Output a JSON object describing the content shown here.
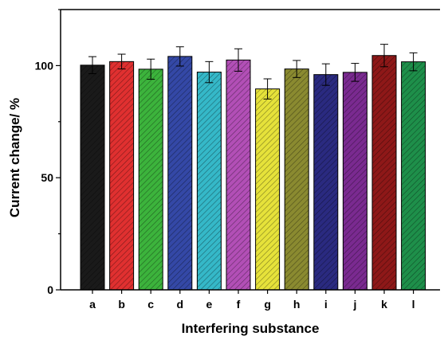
{
  "chart_data": {
    "type": "bar",
    "xlabel": "Interfering substance",
    "ylabel": "Current change/ %",
    "categories": [
      "a",
      "b",
      "c",
      "d",
      "e",
      "f",
      "g",
      "h",
      "i",
      "j",
      "k",
      "l"
    ],
    "values": [
      100.2,
      101.8,
      98.4,
      104.1,
      97.1,
      102.5,
      89.6,
      98.5,
      96.0,
      97.0,
      104.5,
      101.7
    ],
    "errors": [
      3.8,
      3.3,
      4.5,
      4.3,
      4.7,
      5.0,
      4.5,
      3.8,
      4.8,
      4.0,
      5.0,
      4.0
    ],
    "colors": [
      "#1a1a1a",
      "#e03030",
      "#3cb33c",
      "#3448a6",
      "#35b8c8",
      "#b24fb6",
      "#e6e23a",
      "#8a8a30",
      "#2a2a80",
      "#7a2a90",
      "#8e1818",
      "#1e8f4a"
    ],
    "ylim": [
      0,
      125
    ],
    "yticks": [
      "0",
      "50",
      "100"
    ],
    "ytick_values": [
      0,
      50,
      100
    ],
    "grid": false,
    "legend": "none",
    "hatch": "diagonal"
  }
}
